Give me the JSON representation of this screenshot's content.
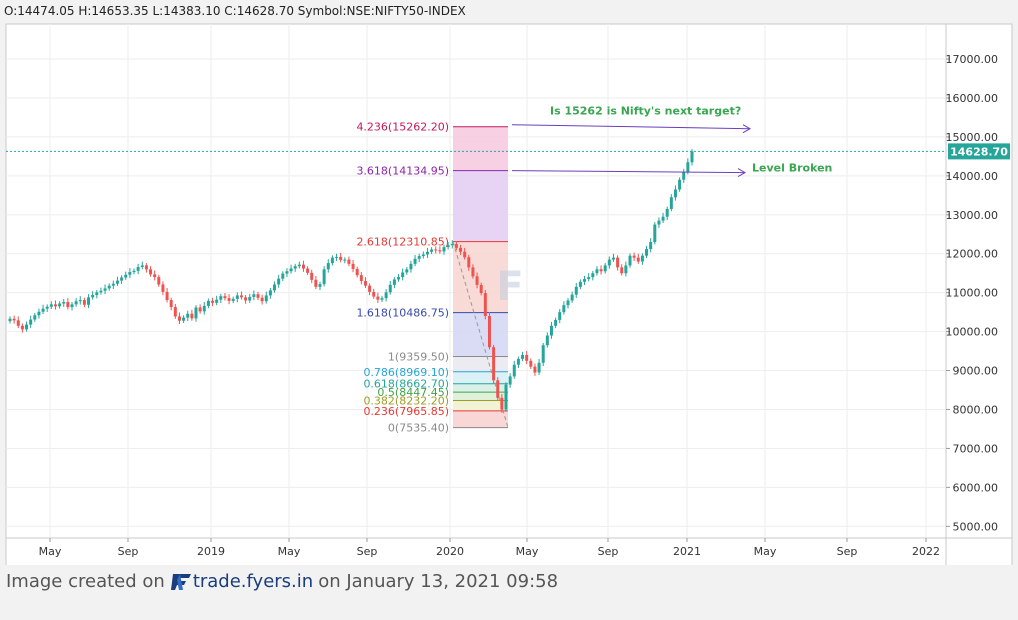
{
  "header": {
    "ohlc_text": "O:14474.05 H:14653.35 L:14383.10 C:14628.70 Symbol:NSE:NIFTY50-INDEX"
  },
  "footer": {
    "prefix": "Image created on",
    "brand": "trade.fyers.in",
    "suffix": "on January 13, 2021 09:58"
  },
  "colors": {
    "up": "#26a69a",
    "down": "#ef5350",
    "price_line": "#26a69a",
    "arrow": "#6b3fbf",
    "annotation_text": "#3aa652"
  },
  "chart_data": {
    "type": "candlestick",
    "symbol": "NSE:NIFTY50-INDEX",
    "ylim": [
      4700,
      17900
    ],
    "y_ticks": [
      5000,
      6000,
      7000,
      8000,
      9000,
      10000,
      11000,
      12000,
      13000,
      14000,
      15000,
      16000,
      17000
    ],
    "y_tick_labels": [
      "5000.00",
      "6000.00",
      "7000.00",
      "8000.00",
      "9000.00",
      "10000.00",
      "11000.00",
      "12000.00",
      "13000.00",
      "14000.00",
      "15000.00",
      "16000.00",
      "17000.00"
    ],
    "x_ticks": [
      "May",
      "Sep",
      "2019",
      "May",
      "Sep",
      "2020",
      "May",
      "Sep",
      "2021",
      "May",
      "Sep",
      "2022"
    ],
    "last_price": 14628.7,
    "last_price_label": "14628.70",
    "candles_weekly_close": [
      10330,
      10290,
      10150,
      10060,
      10180,
      10310,
      10420,
      10510,
      10590,
      10640,
      10700,
      10650,
      10720,
      10760,
      10630,
      10700,
      10780,
      10810,
      10690,
      10880,
      10940,
      11010,
      11050,
      11110,
      11180,
      11230,
      11310,
      11390,
      11460,
      11530,
      11560,
      11660,
      11700,
      11600,
      11470,
      11400,
      11210,
      11020,
      10810,
      10630,
      10390,
      10280,
      10360,
      10460,
      10340,
      10620,
      10520,
      10660,
      10790,
      10740,
      10820,
      10910,
      10860,
      10790,
      10840,
      10930,
      10880,
      10800,
      10890,
      10960,
      10870,
      10780,
      10930,
      11060,
      11210,
      11360,
      11490,
      11550,
      11620,
      11680,
      11720,
      11620,
      11510,
      11330,
      11150,
      11220,
      11600,
      11760,
      11900,
      11920,
      11840,
      11850,
      11740,
      11610,
      11450,
      11300,
      11180,
      11020,
      10900,
      10820,
      10860,
      11010,
      11200,
      11340,
      11400,
      11520,
      11600,
      11740,
      11870,
      11940,
      11980,
      12050,
      12110,
      12090,
      12060,
      12170,
      12220,
      12250,
      12150,
      12050,
      11910,
      11650,
      11420,
      11200,
      10990,
      10400,
      9600,
      8750,
      8300,
      8000,
      8640,
      8850,
      9150,
      9300,
      9400,
      9250,
      9100,
      8950,
      9200,
      9650,
      9900,
      10150,
      10300,
      10500,
      10680,
      10800,
      10950,
      11150,
      11280,
      11350,
      11400,
      11500,
      11600,
      11550,
      11700,
      11850,
      11900,
      11650,
      11500,
      11700,
      11950,
      11900,
      11800,
      11950,
      12120,
      12300,
      12750,
      12850,
      12950,
      13150,
      13450,
      13650,
      13900,
      14100,
      14350,
      14628
    ],
    "fibonacci": {
      "levels": [
        {
          "ratio": "4.236",
          "price": 15262.2,
          "label": "4.236(15262.20)",
          "color": "#c2185b",
          "fill": "#f6c8de"
        },
        {
          "ratio": "3.618",
          "price": 14134.95,
          "label": "3.618(14134.95)",
          "color": "#8e24aa",
          "fill": "#e3cdf3"
        },
        {
          "ratio": "2.618",
          "price": 12310.85,
          "label": "2.618(12310.85)",
          "color": "#e53935",
          "fill": "#f7d4d0"
        },
        {
          "ratio": "1.618",
          "price": 10486.75,
          "label": "1.618(10486.75)",
          "color": "#3949ab",
          "fill": "#d3d6f5"
        },
        {
          "ratio": "1",
          "price": 9359.5,
          "label": "1(9359.50)",
          "color": "#8a8a8a",
          "fill": "#e7e7ef"
        },
        {
          "ratio": "0.786",
          "price": 8969.1,
          "label": "0.786(8969.10)",
          "color": "#29a3d6",
          "fill": "#d6eef5"
        },
        {
          "ratio": "0.618",
          "price": 8662.7,
          "label": "0.618(8662.70)",
          "color": "#26a69a",
          "fill": "#d4efe6"
        },
        {
          "ratio": "0.5",
          "price": 8447.45,
          "label": "0.5(8447.45)",
          "color": "#43a047",
          "fill": "#d9efd2"
        },
        {
          "ratio": "0.382",
          "price": 8232.2,
          "label": "0.382(8232.20)",
          "color": "#9e9d24",
          "fill": "#eef0cf"
        },
        {
          "ratio": "0.236",
          "price": 7965.85,
          "label": "0.236(7965.85)",
          "color": "#e53935",
          "fill": "#f7d0cf"
        },
        {
          "ratio": "0",
          "price": 7535.4,
          "label": "0(7535.40)",
          "color": "#8a8a8a",
          "fill": "#e7e7e7"
        }
      ]
    },
    "annotations": [
      {
        "text": "Is 15262 is Nifty's next target?",
        "price": 15262.2
      },
      {
        "text": "Level Broken",
        "price": 14134.95
      }
    ]
  }
}
